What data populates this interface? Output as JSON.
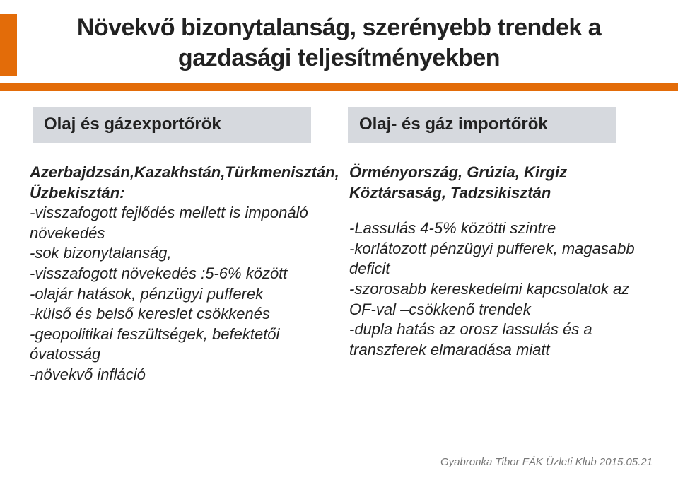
{
  "title": "Növekvő bizonytalanság, szerényebb trendek a gazdasági teljesítményekben",
  "accent_color": "#e36c09",
  "header_bg": "#d6d9de",
  "headers": {
    "left": "Olaj és gázexportőrök",
    "right": " Olaj- és gáz importőrök"
  },
  "left": {
    "lead1": "Azerbajdzsán,Kazakhstán,Türkmenisztán,",
    "lead2": "Üzbekisztán:",
    "b1": "-visszafogott fejlődés mellett is imponáló növekedés",
    "b2": "-sok bizonytalanság,",
    "b3": "-visszafogott növekedés :5-6% között",
    "b4": "-olajár hatások, pénzügyi     pufferek",
    "b5": "-külső és belső kereslet  csökkenés",
    "b6": "-geopolitikai feszültségek, befektetői óvatosság",
    "b7": "-növekvő infláció"
  },
  "right": {
    "lead1": "Örményország, Grúzia, Kirgiz Köztársaság, Tadzsikisztán",
    "b1": "-Lassulás 4-5% közötti szintre",
    "b2": "-korlátozott pénzügyi pufferek, magasabb deficit",
    "b3": "-szorosabb kereskedelmi kapcsolatok az OF-val –csökkenő trendek",
    "b4": "-dupla hatás az orosz lassulás és a transzferek elmaradása miatt"
  },
  "footer": "Gyabronka Tibor FÁK Üzleti Klub  2015.05.21"
}
